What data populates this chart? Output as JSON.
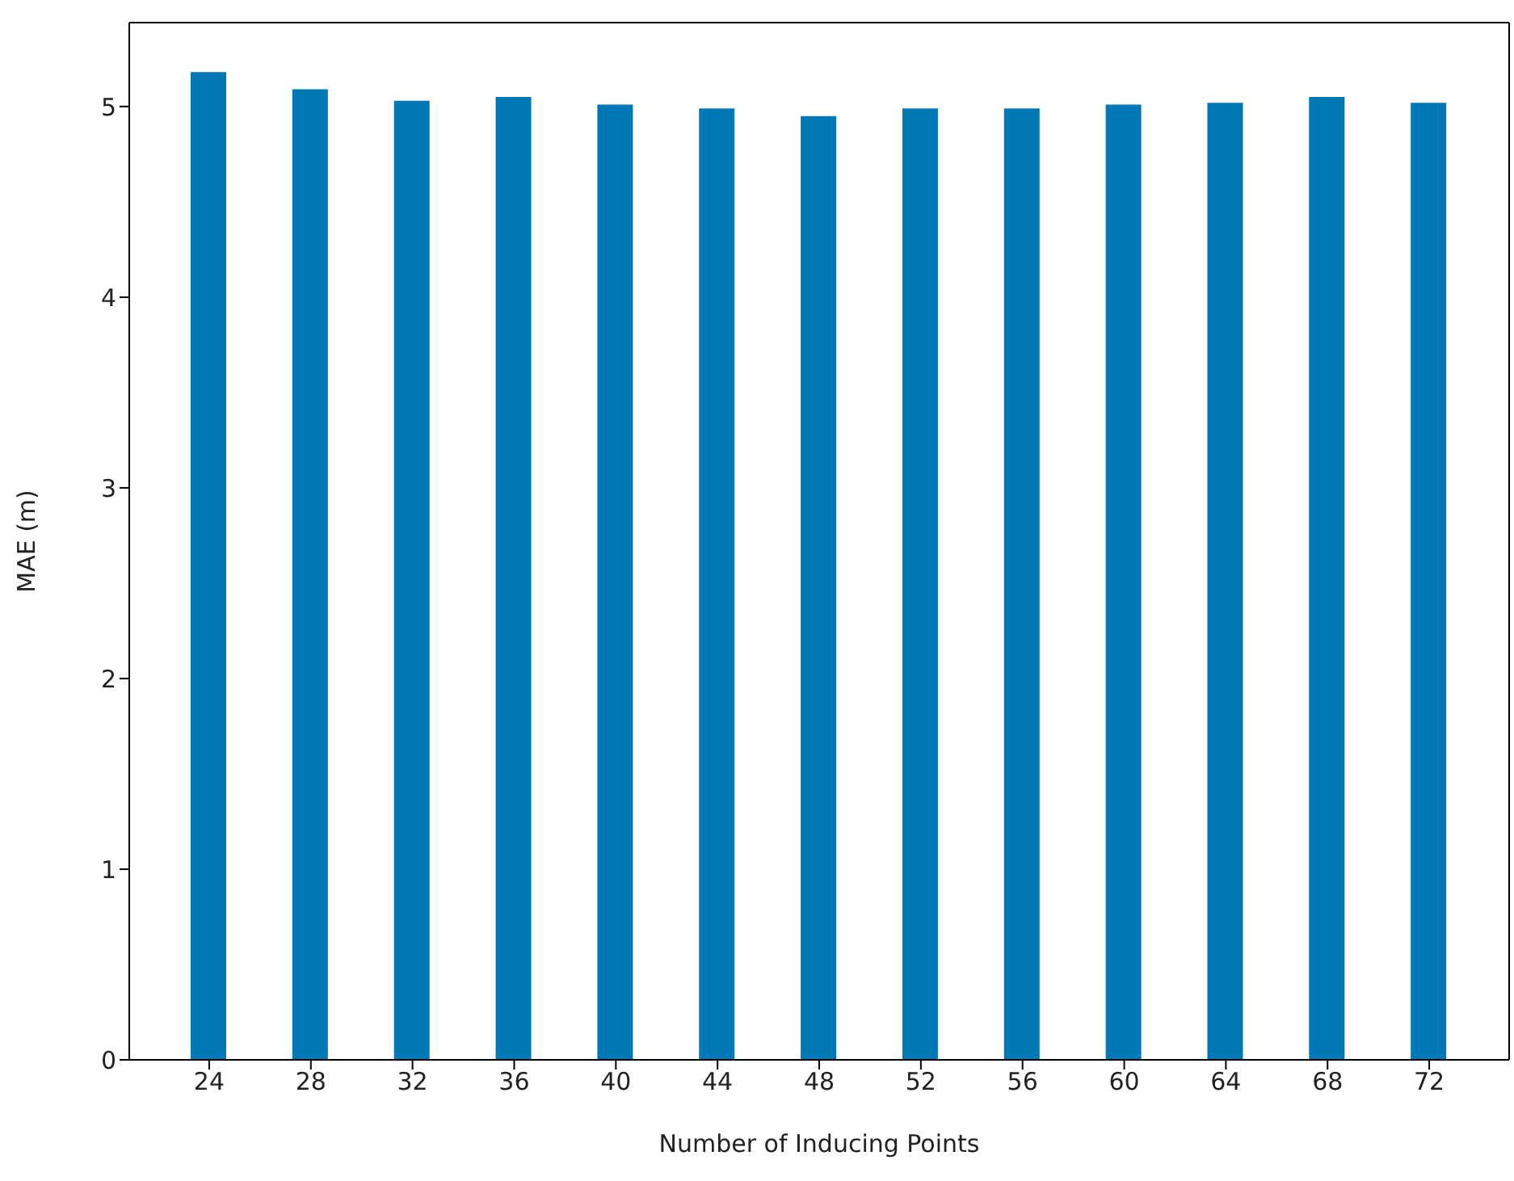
{
  "chart_data": {
    "type": "bar",
    "xlabel": "Number of Inducing Points",
    "ylabel": "MAE (m)",
    "categories": [
      "24",
      "28",
      "32",
      "36",
      "40",
      "44",
      "48",
      "52",
      "56",
      "60",
      "64",
      "68",
      "72"
    ],
    "values": [
      5.18,
      5.09,
      5.03,
      5.05,
      5.01,
      4.99,
      4.95,
      4.99,
      4.99,
      5.01,
      5.02,
      5.05,
      5.02
    ],
    "color": "#0077b6",
    "ylim": [
      0,
      5.44
    ],
    "yticks": [
      0,
      1,
      2,
      3,
      4,
      5
    ],
    "grid": false,
    "legend": false
  }
}
